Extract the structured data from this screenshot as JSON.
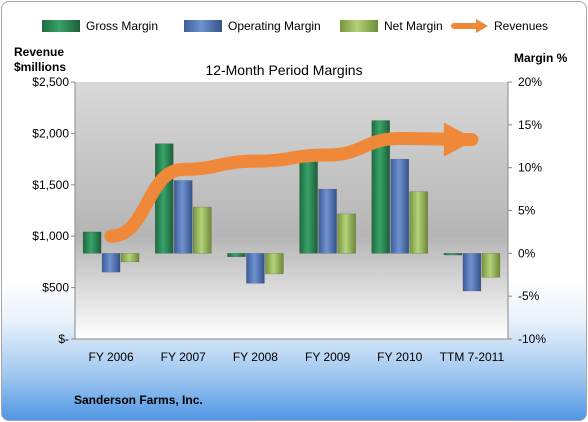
{
  "chart_data": {
    "type": "bar",
    "title": "12-Month Period Margins",
    "company": "Sanderson Farms, Inc.",
    "left_axis": {
      "label_line1": "Revenue",
      "label_line2": "$millions",
      "min": 0,
      "max": 2500,
      "step": 500,
      "tick_labels": [
        "$-",
        "$500",
        "$1,000",
        "$1,500",
        "$2,000",
        "$2,500"
      ]
    },
    "right_axis": {
      "label": "Margin %",
      "min": -10,
      "max": 20,
      "step": 5,
      "tick_labels": [
        "-10%",
        "-5%",
        "0%",
        "5%",
        "10%",
        "15%",
        "20%"
      ]
    },
    "categories": [
      "FY 2006",
      "FY 2007",
      "FY 2008",
      "FY 2009",
      "FY 2010",
      "TTM 7-2011"
    ],
    "series": [
      {
        "name": "Gross Margin",
        "axis": "right",
        "color": "#2e8b57",
        "values": [
          2.5,
          12.8,
          -0.4,
          11.2,
          15.5,
          -0.2
        ]
      },
      {
        "name": "Operating Margin",
        "axis": "right",
        "color": "#5578b8",
        "values": [
          -2.2,
          8.5,
          -3.5,
          7.5,
          11.0,
          -4.4
        ]
      },
      {
        "name": "Net Margin",
        "axis": "right",
        "color": "#9bbb59",
        "values": [
          -1.0,
          5.4,
          -2.4,
          4.6,
          7.2,
          -2.8
        ]
      },
      {
        "name": "Revenues",
        "axis": "left",
        "type": "line",
        "color": "#f0883a",
        "values": [
          1000,
          1650,
          1730,
          1790,
          1950,
          1940
        ]
      }
    ],
    "grid": false,
    "legend": "top"
  }
}
